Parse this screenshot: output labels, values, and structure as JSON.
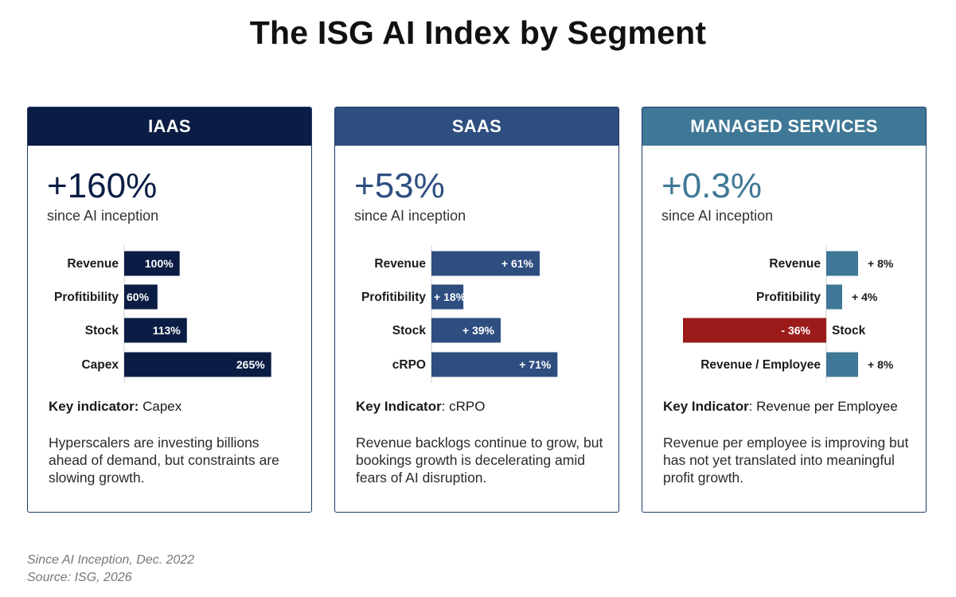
{
  "title": "The ISG AI Index by Segment",
  "colors": {
    "iaas": "#0b1d44",
    "saas": "#2e4e80",
    "managed": "#3f7896",
    "negative": "#9b1b1b"
  },
  "footer": {
    "line1": "Since AI Inception, Dec. 2022",
    "line2": "Source: ISG, 2026"
  },
  "chart_data": [
    {
      "type": "bar",
      "orientation": "horizontal",
      "title": "IAAS",
      "headline": "+160%",
      "subtitle": "since AI inception",
      "categories": [
        "Revenue",
        "Profitibility",
        "Stock",
        "Capex"
      ],
      "values": [
        100,
        60,
        113,
        265
      ],
      "value_labels": [
        "100%",
        "60%",
        "113%",
        "265%"
      ],
      "key_label": "Key indicator:",
      "key_value": " Capex",
      "description": "Hyperscalers are investing billions ahead of demand, but constraints are slowing growth."
    },
    {
      "type": "bar",
      "orientation": "horizontal",
      "title": "SAAS",
      "headline": "+53%",
      "subtitle": "since AI inception",
      "categories": [
        "Revenue",
        "Profitibility",
        "Stock",
        "cRPO"
      ],
      "values": [
        61,
        18,
        39,
        71
      ],
      "value_labels": [
        "+ 61%",
        "+ 18%",
        "+ 39%",
        "+ 71%"
      ],
      "key_label": "Key Indicator",
      "key_value": ": cRPO",
      "description": "Revenue backlogs continue to grow, but bookings growth is decelerating amid fears of AI disruption."
    },
    {
      "type": "bar",
      "orientation": "horizontal",
      "title": "MANAGED SERVICES",
      "headline": "+0.3%",
      "subtitle": "since AI inception",
      "categories": [
        "Revenue",
        "Profitibility",
        "Stock",
        "Revenue / Employee"
      ],
      "values": [
        8,
        4,
        -36,
        8
      ],
      "value_labels": [
        "+ 8%",
        "+ 4%",
        "- 36%",
        "+ 8%"
      ],
      "key_label": "Key Indicator",
      "key_value": ": Revenue per Employee",
      "description": "Revenue per employee is improving but has not yet translated into meaningful profit growth."
    }
  ]
}
